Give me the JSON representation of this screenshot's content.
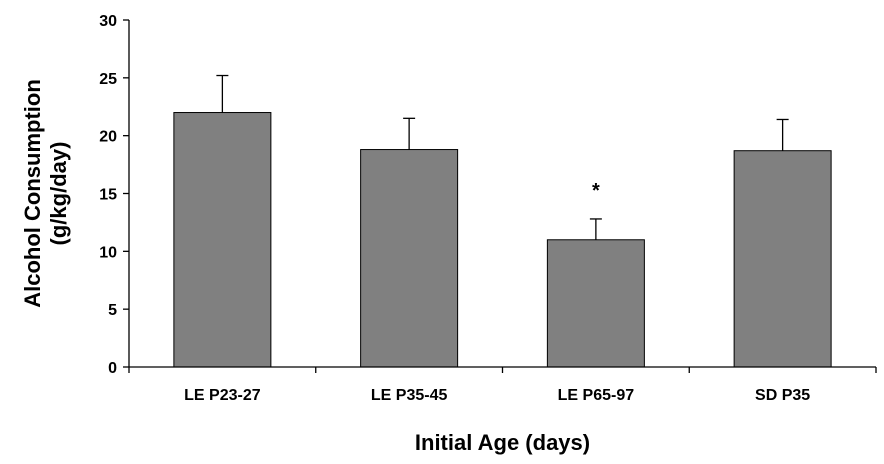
{
  "chart_data": {
    "type": "bar",
    "categories": [
      "LE P23-27",
      "LE P35-45",
      "LE P65-97",
      "SD P35"
    ],
    "series": [
      {
        "values": [
          22.0,
          18.8,
          11.0,
          18.7
        ],
        "error": [
          3.2,
          2.7,
          1.8,
          2.7
        ]
      }
    ],
    "xlabel": "Initial Age (days)",
    "ylabel_line1": "Alcohol Consumption",
    "ylabel_line2": "(g/kg/day)",
    "ylim": [
      0,
      30
    ],
    "yticks": [
      0,
      5,
      10,
      15,
      20,
      25,
      30
    ],
    "annotations": [
      {
        "category": "LE P65-97",
        "text": "*"
      }
    ],
    "grid": false,
    "legend": "none",
    "colors": {
      "bar_fill": "#808080",
      "bar_stroke": "#000000",
      "axis": "#000000"
    }
  }
}
